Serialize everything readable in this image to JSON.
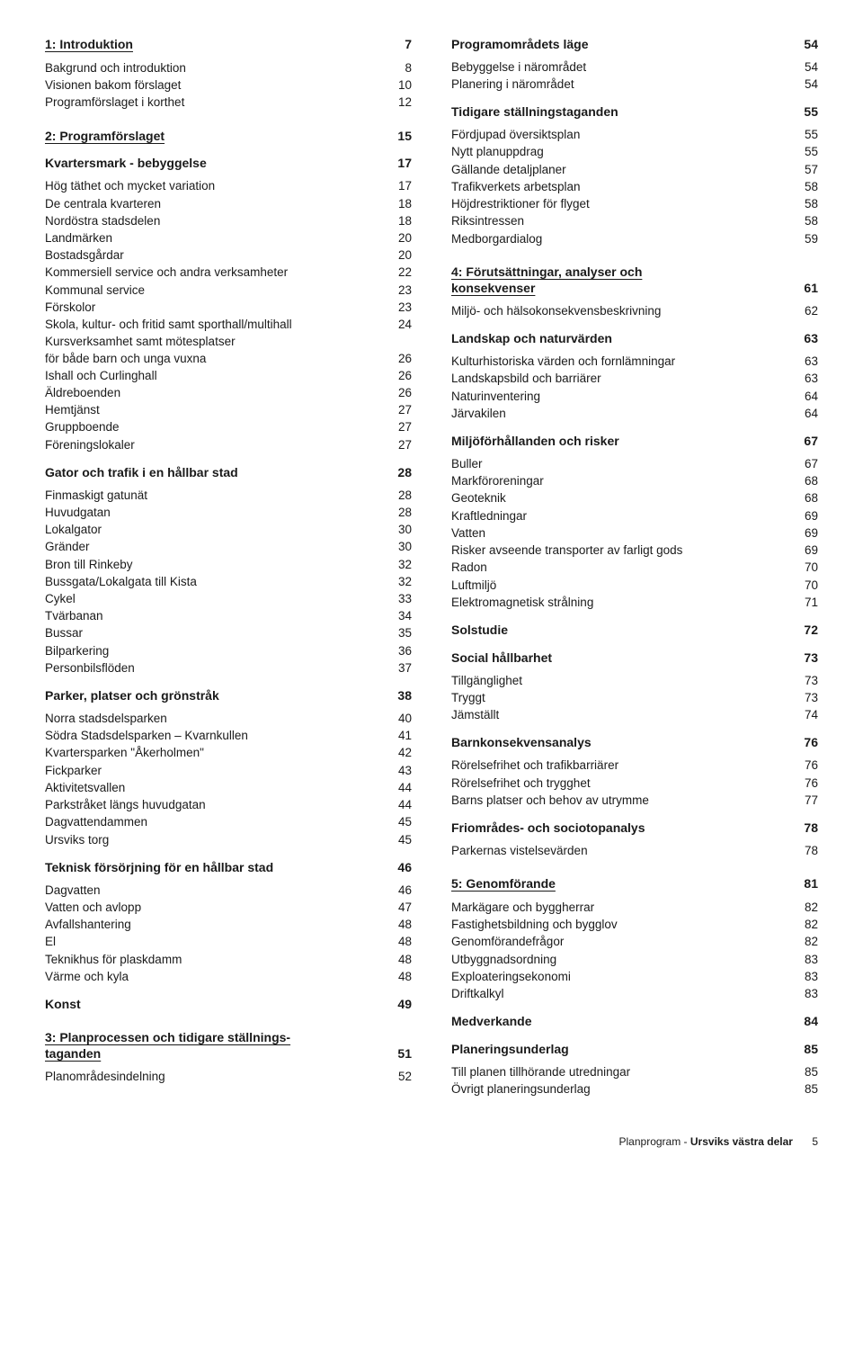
{
  "columns": [
    {
      "entries": [
        {
          "type": "section",
          "title": "1: Introduktion",
          "page": "7"
        },
        {
          "type": "plain",
          "label": "Bakgrund och introduktion",
          "page": "8"
        },
        {
          "type": "plain",
          "label": "Visionen bakom förslaget",
          "page": "10"
        },
        {
          "type": "plain",
          "label": "Programförslaget i korthet",
          "page": "12"
        },
        {
          "type": "section",
          "title": "2: Programförslaget",
          "page": "15"
        },
        {
          "type": "sub",
          "label": "Kvartersmark - bebyggelse",
          "page": "17"
        },
        {
          "type": "plain",
          "label": "Hög täthet och mycket variation",
          "page": "17"
        },
        {
          "type": "plain",
          "label": "De centrala kvarteren",
          "page": "18"
        },
        {
          "type": "plain",
          "label": "Nordöstra stadsdelen",
          "page": "18"
        },
        {
          "type": "plain",
          "label": "Landmärken",
          "page": "20"
        },
        {
          "type": "plain",
          "label": "Bostadsgårdar",
          "page": "20"
        },
        {
          "type": "plain",
          "label": "Kommersiell service och andra verksamheter",
          "page": "22"
        },
        {
          "type": "plain",
          "label": "Kommunal service",
          "page": "23"
        },
        {
          "type": "plain",
          "label": "Förskolor",
          "page": "23"
        },
        {
          "type": "plain",
          "label": "Skola, kultur- och fritid samt sporthall/multihall",
          "page": "24"
        },
        {
          "type": "plain",
          "label": "Kursverksamhet samt mötesplatser\nför både barn och unga vuxna",
          "page": "26"
        },
        {
          "type": "plain",
          "label": "Ishall och Curlinghall",
          "page": "26"
        },
        {
          "type": "plain",
          "label": "Äldreboenden",
          "page": "26"
        },
        {
          "type": "plain",
          "label": "Hemtjänst",
          "page": "27"
        },
        {
          "type": "plain",
          "label": "Gruppboende",
          "page": "27"
        },
        {
          "type": "plain",
          "label": "Föreningslokaler",
          "page": "27"
        },
        {
          "type": "sub",
          "label": "Gator och trafik i en hållbar stad",
          "page": "28"
        },
        {
          "type": "plain",
          "label": "Finmaskigt gatunät",
          "page": "28"
        },
        {
          "type": "plain",
          "label": "Huvudgatan",
          "page": "28"
        },
        {
          "type": "plain",
          "label": "Lokalgator",
          "page": "30"
        },
        {
          "type": "plain",
          "label": "Gränder",
          "page": "30"
        },
        {
          "type": "plain",
          "label": "Bron till Rinkeby",
          "page": "32"
        },
        {
          "type": "plain",
          "label": "Bussgata/Lokalgata till Kista",
          "page": "32"
        },
        {
          "type": "plain",
          "label": "Cykel",
          "page": "33"
        },
        {
          "type": "plain",
          "label": "Tvärbanan",
          "page": "34"
        },
        {
          "type": "plain",
          "label": "Bussar",
          "page": "35"
        },
        {
          "type": "plain",
          "label": "Bilparkering",
          "page": "36"
        },
        {
          "type": "plain",
          "label": "Personbilsflöden",
          "page": "37"
        },
        {
          "type": "sub",
          "label": "Parker, platser och grönstråk",
          "page": "38"
        },
        {
          "type": "plain",
          "label": "Norra stadsdelsparken",
          "page": "40"
        },
        {
          "type": "plain",
          "label": "Södra Stadsdelsparken – Kvarnkullen",
          "page": "41"
        },
        {
          "type": "plain",
          "label": "Kvartersparken \"Åkerholmen\"",
          "page": "42"
        },
        {
          "type": "plain",
          "label": "Fickparker",
          "page": "43"
        },
        {
          "type": "plain",
          "label": "Aktivitetsvallen",
          "page": "44"
        },
        {
          "type": "plain",
          "label": "Parkstråket längs huvudgatan",
          "page": "44"
        },
        {
          "type": "plain",
          "label": "Dagvattendammen",
          "page": "45"
        },
        {
          "type": "plain",
          "label": "Ursviks torg",
          "page": "45"
        },
        {
          "type": "sub",
          "label": "Teknisk försörjning för en hållbar stad",
          "page": "46"
        },
        {
          "type": "plain",
          "label": "Dagvatten",
          "page": "46"
        },
        {
          "type": "plain",
          "label": "Vatten och avlopp",
          "page": "47"
        },
        {
          "type": "plain",
          "label": "Avfallshantering",
          "page": "48"
        },
        {
          "type": "plain",
          "label": "El",
          "page": "48"
        },
        {
          "type": "plain",
          "label": "Teknikhus för plaskdamm",
          "page": "48"
        },
        {
          "type": "plain",
          "label": "Värme och kyla",
          "page": "48"
        },
        {
          "type": "sub",
          "label": "Konst",
          "page": "49"
        },
        {
          "type": "section",
          "title": "3: Planprocessen och tidigare ställnings-\ntaganden",
          "page": "51"
        },
        {
          "type": "plain",
          "label": "Planområdesindelning",
          "page": "52"
        }
      ]
    },
    {
      "entries": [
        {
          "type": "sub_first",
          "label": "Programområdets läge",
          "page": "54"
        },
        {
          "type": "plain",
          "label": "Bebyggelse i närområdet",
          "page": "54"
        },
        {
          "type": "plain",
          "label": "Planering i närområdet",
          "page": "54"
        },
        {
          "type": "sub",
          "label": "Tidigare ställningstaganden",
          "page": "55"
        },
        {
          "type": "plain",
          "label": "Fördjupad översiktsplan",
          "page": "55"
        },
        {
          "type": "plain",
          "label": "Nytt planuppdrag",
          "page": "55"
        },
        {
          "type": "plain",
          "label": "Gällande detaljplaner",
          "page": "57"
        },
        {
          "type": "plain",
          "label": "Trafikverkets arbetsplan",
          "page": "58"
        },
        {
          "type": "plain",
          "label": "Höjdrestriktioner för flyget",
          "page": "58"
        },
        {
          "type": "plain",
          "label": "Riksintressen",
          "page": "58"
        },
        {
          "type": "plain",
          "label": "Medborgardialog",
          "page": "59"
        },
        {
          "type": "section",
          "title": "4: Förutsättningar, analyser och\nkonsekvenser",
          "page": "61"
        },
        {
          "type": "plain",
          "label": "Miljö- och hälsokonsekvensbeskrivning",
          "page": "62"
        },
        {
          "type": "sub",
          "label": "Landskap och naturvärden",
          "page": "63"
        },
        {
          "type": "plain",
          "label": "Kulturhistoriska värden och fornlämningar",
          "page": "63"
        },
        {
          "type": "plain",
          "label": "Landskapsbild och barriärer",
          "page": "63"
        },
        {
          "type": "plain",
          "label": "Naturinventering",
          "page": "64"
        },
        {
          "type": "plain",
          "label": "Järvakilen",
          "page": "64"
        },
        {
          "type": "sub",
          "label": "Miljöförhållanden och risker",
          "page": "67"
        },
        {
          "type": "plain",
          "label": "Buller",
          "page": "67"
        },
        {
          "type": "plain",
          "label": "Markföroreningar",
          "page": "68"
        },
        {
          "type": "plain",
          "label": "Geoteknik",
          "page": "68"
        },
        {
          "type": "plain",
          "label": "Kraftledningar",
          "page": "69"
        },
        {
          "type": "plain",
          "label": "Vatten",
          "page": "69"
        },
        {
          "type": "plain",
          "label": "Risker avseende transporter av farligt gods",
          "page": "69"
        },
        {
          "type": "plain",
          "label": "Radon",
          "page": "70"
        },
        {
          "type": "plain",
          "label": "Luftmiljö",
          "page": "70"
        },
        {
          "type": "plain",
          "label": "Elektromagnetisk strålning",
          "page": "71"
        },
        {
          "type": "sub",
          "label": "Solstudie",
          "page": "72"
        },
        {
          "type": "sub",
          "label": "Social hållbarhet",
          "page": "73"
        },
        {
          "type": "plain",
          "label": "Tillgänglighet",
          "page": "73"
        },
        {
          "type": "plain",
          "label": "Tryggt",
          "page": "73"
        },
        {
          "type": "plain",
          "label": "Jämställt",
          "page": "74"
        },
        {
          "type": "sub",
          "label": "Barnkonsekvensanalys",
          "page": "76"
        },
        {
          "type": "plain",
          "label": "Rörelsefrihet och trafikbarriärer",
          "page": "76"
        },
        {
          "type": "plain",
          "label": "Rörelsefrihet och trygghet",
          "page": "76"
        },
        {
          "type": "plain",
          "label": "Barns platser och behov av utrymme",
          "page": "77"
        },
        {
          "type": "sub",
          "label": "Friområdes- och sociotopanalys",
          "page": "78"
        },
        {
          "type": "plain",
          "label": "Parkernas vistelsevärden",
          "page": "78"
        },
        {
          "type": "section",
          "title": "5: Genomförande",
          "page": "81"
        },
        {
          "type": "plain",
          "label": "Markägare och byggherrar",
          "page": "82"
        },
        {
          "type": "plain",
          "label": "Fastighetsbildning och bygglov",
          "page": "82"
        },
        {
          "type": "plain",
          "label": "Genomförandefrågor",
          "page": "82"
        },
        {
          "type": "plain",
          "label": "Utbyggnadsordning",
          "page": "83"
        },
        {
          "type": "plain",
          "label": "Exploateringsekonomi",
          "page": "83"
        },
        {
          "type": "plain",
          "label": "Driftkalkyl",
          "page": "83"
        },
        {
          "type": "sub",
          "label": "Medverkande",
          "page": "84"
        },
        {
          "type": "sub",
          "label": "Planeringsunderlag",
          "page": "85"
        },
        {
          "type": "plain",
          "label": "Till planen tillhörande utredningar",
          "page": "85"
        },
        {
          "type": "plain",
          "label": "Övrigt planeringsunderlag",
          "page": "85"
        }
      ]
    }
  ],
  "footer": {
    "doc": "Planprogram - ",
    "project": "Ursviks västra delar",
    "page": "5"
  }
}
